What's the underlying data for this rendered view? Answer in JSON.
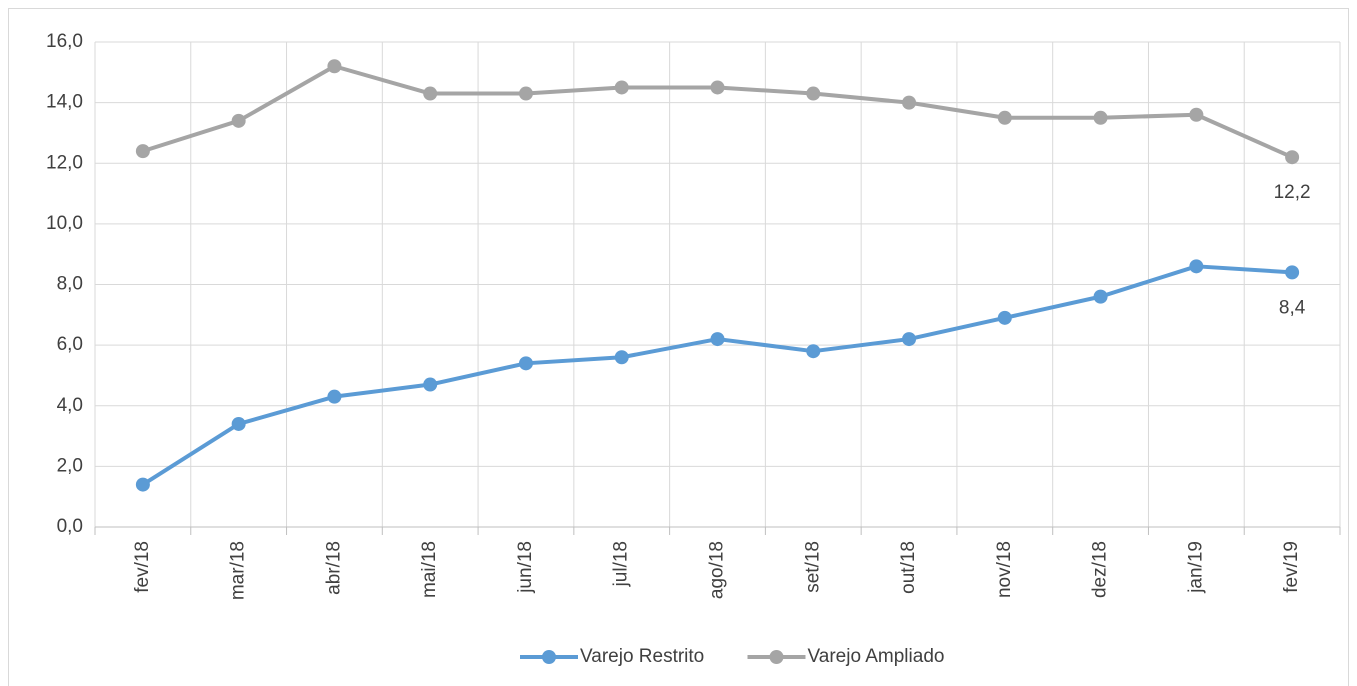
{
  "chart_data": {
    "type": "line",
    "categories": [
      "fev/18",
      "mar/18",
      "abr/18",
      "mai/18",
      "jun/18",
      "jul/18",
      "ago/18",
      "set/18",
      "out/18",
      "nov/18",
      "dez/18",
      "jan/19",
      "fev/19"
    ],
    "series": [
      {
        "name": "Varejo Restrito",
        "color": "#5b9bd5",
        "values": [
          1.4,
          3.4,
          4.3,
          4.7,
          5.4,
          5.6,
          6.2,
          5.8,
          6.2,
          6.9,
          7.6,
          8.6,
          8.4
        ],
        "value_labels": [
          null,
          null,
          null,
          null,
          null,
          null,
          null,
          null,
          null,
          null,
          null,
          null,
          "8,4"
        ]
      },
      {
        "name": "Varejo Ampliado",
        "color": "#a5a5a5",
        "values": [
          12.4,
          13.4,
          15.2,
          14.3,
          14.3,
          14.5,
          14.5,
          14.3,
          14.0,
          13.5,
          13.5,
          13.6,
          12.2
        ],
        "value_labels": [
          null,
          null,
          null,
          null,
          null,
          null,
          null,
          null,
          null,
          null,
          null,
          null,
          "12,2"
        ]
      }
    ],
    "ylim": [
      0,
      16
    ],
    "yticks": [
      {
        "value": 0,
        "label": "0,0"
      },
      {
        "value": 2,
        "label": "2,0"
      },
      {
        "value": 4,
        "label": "4,0"
      },
      {
        "value": 6,
        "label": "6,0"
      },
      {
        "value": 8,
        "label": "8,0"
      },
      {
        "value": 10,
        "label": "10,0"
      },
      {
        "value": 12,
        "label": "12,0"
      },
      {
        "value": 14,
        "label": "14,0"
      },
      {
        "value": 16,
        "label": "16,0"
      }
    ],
    "grid": true,
    "legend": "bottom"
  }
}
